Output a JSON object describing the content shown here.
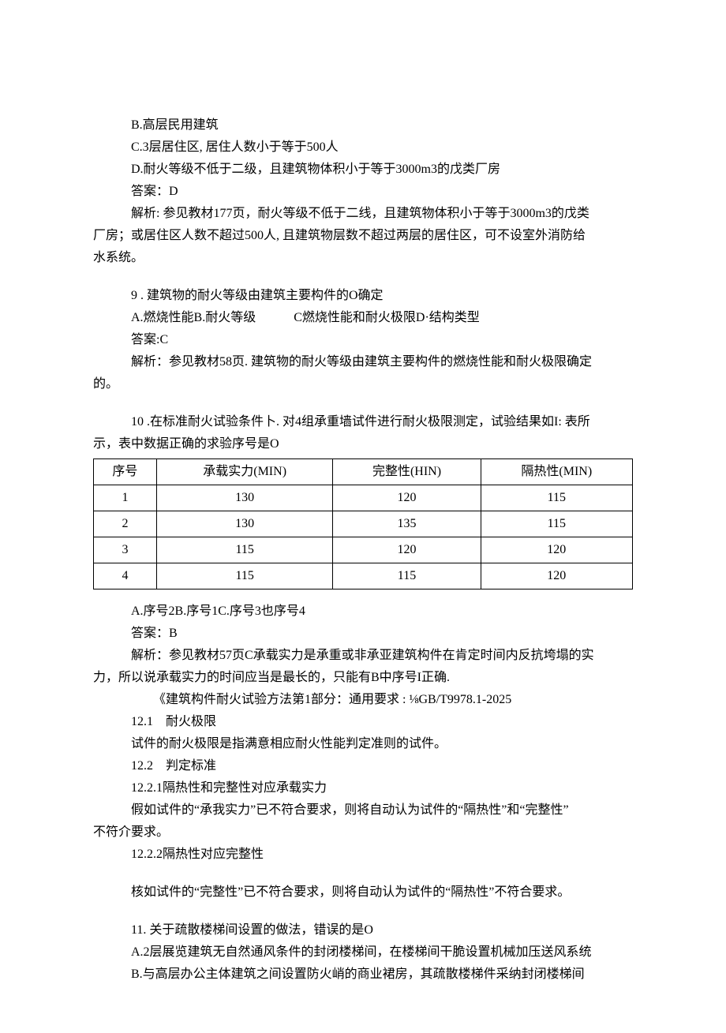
{
  "lines": {
    "b": "B.高层民用建筑",
    "c": "C.3层居住区, 居住人数小于等于500人",
    "d": "D.耐火等级不低于二级，且建筑物体积小于等于3000m3的戊类厂房",
    "ans1": "答案：D",
    "exp1a": "解析: 参见教材177页，耐火等级不低于二线，且建筑物体积小于等于3000m3的戊类",
    "exp1b": "厂房；或居住区人数不超过500人, 且建筑物层数不超过两层的居住区，可不设室外消防给",
    "exp1c": "水系统。",
    "q9a": "9 . 建筑物的耐火等级由建筑主要构件的O确定",
    "q9b": "A.燃烧性能B.耐火等级   C燃烧性能和耐火极限D·结构类型",
    "ans9": "答案:C",
    "exp9a": "解析：参见教材58页. 建筑物的耐火等级由建筑主要构件的燃烧性能和耐火极限确定",
    "exp9b": "的。",
    "q10a": "10 .在标准耐火试验条件卜. 对4组承重墙试件进行耐火极限测定，试验结果如I: 表所",
    "q10b": "示，表中数据正确的求验序号是O",
    "q10opts": "A.序号2B.序号1C.序号3也序号4",
    "ans10": "答案：B",
    "exp10a": "解析：参见教材57页C承载实力是承重或非承亚建筑构件在肯定时间内反抗垮塌的实",
    "exp10b": "力，所以说承载实力的时间应当是最长的，只能有B中序号I正确.",
    "exp10c": "《建筑构件耐火试验方法第1部分：通用要求 : ⅛GB/T9978.1-2025",
    "sec121": "12.1 耐火极限",
    "sec121txt": "试件的耐火极限是指满意相应耐火性能判定准则的试件。",
    "sec122": "12.2 判定标准",
    "sec1221": "12.2.1隔热性和完整性对应承载实力",
    "sec1221txta": "假如试件的“承我实力”已不符合要求，则将自动认为试件的“隔热性”和“完整性”",
    "sec1221txtb": "不符介要求。",
    "sec1222": "12.2.2隔热性对应完整性",
    "sec1222txt": "核如试件的“完整性”已不符合要求，则将自动认为试件的“隔热性”不符合要求。",
    "q11": "11. 关于疏散楼梯间设置的做法，错误的是O",
    "q11a": "A.2层展览建筑无自然通风条件的封闭楼梯间，在楼梯间干脆设置机械加压送风系统",
    "q11b": "B.与高层办公主体建筑之间设置防火峭的商业裙房，其疏散楼梯件采纳封闭楼梯间"
  },
  "table": {
    "columns": [
      "序号",
      "承载实力(MIN)",
      "完整性(HIN)",
      "隔热性(MIN)"
    ],
    "rows": [
      [
        "1",
        "130",
        "120",
        "115"
      ],
      [
        "2",
        "130",
        "135",
        "115"
      ],
      [
        "3",
        "115",
        "120",
        "120"
      ],
      [
        "4",
        "115",
        "115",
        "120"
      ]
    ],
    "border_color": "#000000"
  },
  "colors": {
    "text": "#000000",
    "background": "#ffffff"
  }
}
